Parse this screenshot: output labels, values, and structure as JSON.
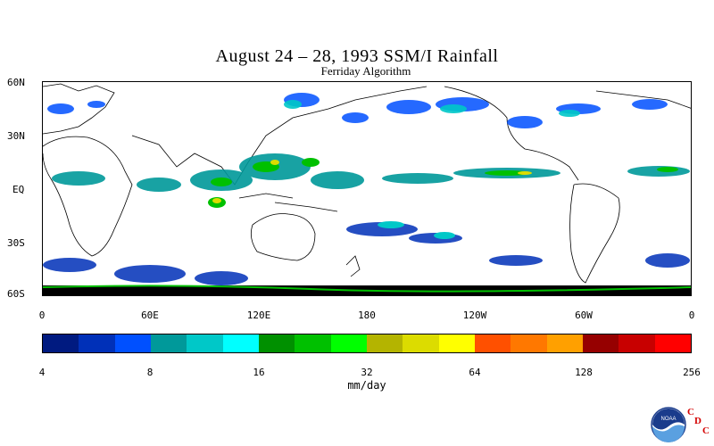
{
  "title": "August 24 – 28, 1993 SSM/I Rainfall",
  "subtitle": "Ferriday Algorithm",
  "map": {
    "latitude_labels": [
      "60N",
      "30N",
      "EQ",
      "30S",
      "60S"
    ],
    "longitude_labels": [
      "0",
      "60E",
      "120E",
      "180",
      "120W",
      "60W",
      "0"
    ]
  },
  "colorbar": {
    "colors": [
      "#001a80",
      "#0030b8",
      "#0050ff",
      "#00999a",
      "#00c8c8",
      "#00ffff",
      "#009000",
      "#00c000",
      "#00ff00",
      "#b4b400",
      "#dcdc00",
      "#ffff00",
      "#ff5000",
      "#ff7800",
      "#ffa000",
      "#960000",
      "#c80000",
      "#ff0000"
    ],
    "tick_labels": [
      "4",
      "8",
      "16",
      "32",
      "64",
      "128",
      "256"
    ],
    "units": "mm/day"
  },
  "logo": {
    "org_text": "NOAA",
    "letters": [
      "C",
      "D",
      "C"
    ]
  }
}
